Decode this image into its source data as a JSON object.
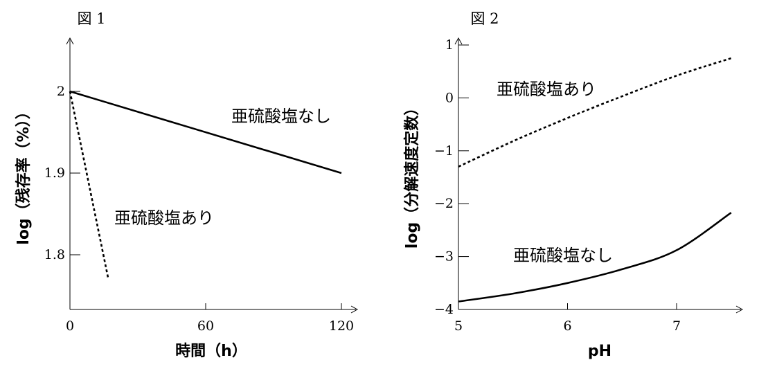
{
  "chart_data": [
    {
      "type": "line",
      "title": "図 1",
      "xlabel": "時間（h）",
      "ylabel": "log（残存率（%））",
      "xlim": [
        0,
        120
      ],
      "ylim": [
        1.73,
        2.07
      ],
      "x_ticks": [
        0,
        60,
        120
      ],
      "x_tick_labels": [
        "0",
        "60",
        "120"
      ],
      "y_ticks": [
        1.8,
        1.9,
        2
      ],
      "y_tick_labels": [
        "1.8",
        "1.9",
        "2"
      ],
      "series": [
        {
          "name": "亜硫酸塩なし",
          "style": "solid",
          "color": "#000000",
          "points": [
            [
              0,
              2.0
            ],
            [
              120,
              1.9
            ]
          ]
        },
        {
          "name": "亜硫酸塩あり",
          "style": "dashed",
          "color": "#000000",
          "points": [
            [
              0,
              2.0
            ],
            [
              17,
              1.77
            ]
          ]
        }
      ]
    },
    {
      "type": "line",
      "title": "図 2",
      "xlabel": "pH",
      "ylabel": "log（分解速度定数）",
      "xlim": [
        5,
        7.6
      ],
      "ylim": [
        -4,
        1.1
      ],
      "x_ticks": [
        5,
        6,
        7
      ],
      "x_tick_labels": [
        "5",
        "6",
        "7"
      ],
      "y_ticks": [
        -4,
        -3,
        -2,
        -1,
        0,
        1
      ],
      "y_tick_labels": [
        "−4",
        "−3",
        "−2",
        "−1",
        "0",
        "1"
      ],
      "series": [
        {
          "name": "亜硫酸塩あり",
          "style": "dashed",
          "color": "#000000",
          "points": [
            [
              5,
              -1.3
            ],
            [
              5.5,
              -0.82
            ],
            [
              6,
              -0.38
            ],
            [
              6.5,
              0.03
            ],
            [
              7,
              0.42
            ],
            [
              7.5,
              0.75
            ]
          ]
        },
        {
          "name": "亜硫酸塩なし",
          "style": "solid",
          "color": "#000000",
          "points": [
            [
              5,
              -3.85
            ],
            [
              5.5,
              -3.7
            ],
            [
              6,
              -3.5
            ],
            [
              6.5,
              -3.24
            ],
            [
              7,
              -2.88
            ],
            [
              7.5,
              -2.17
            ]
          ]
        }
      ]
    }
  ]
}
